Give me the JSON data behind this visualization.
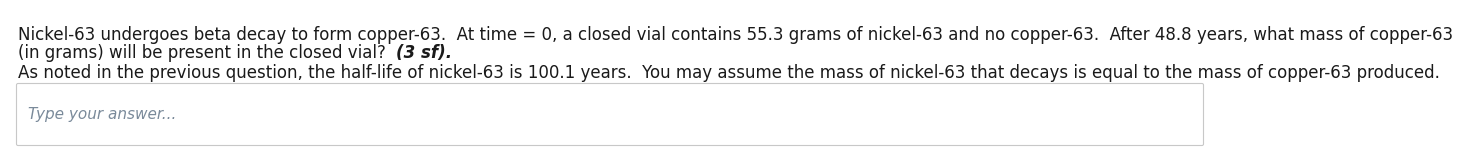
{
  "line1": "Nickel-63 undergoes beta decay to form copper-63.  At time = 0, a closed vial contains 55.3 grams of nickel-63 and no copper-63.  After 48.8 years, what mass of copper-63",
  "line2_normal": "(in grams) will be present in the closed vial?  ",
  "line2_bold": "(3 sf).",
  "line3": "As noted in the previous question, the half-life of nickel-63 is 100.1 years.  You may assume the mass of nickel-63 that decays is equal to the mass of copper-63 produced.",
  "placeholder": "Type your answer...",
  "bg_color": "#ffffff",
  "text_color": "#1a1a1a",
  "placeholder_color": "#7a8a9a",
  "box_border_color": "#c8c8c8",
  "font_size": 12.0,
  "placeholder_font_size": 11.0
}
